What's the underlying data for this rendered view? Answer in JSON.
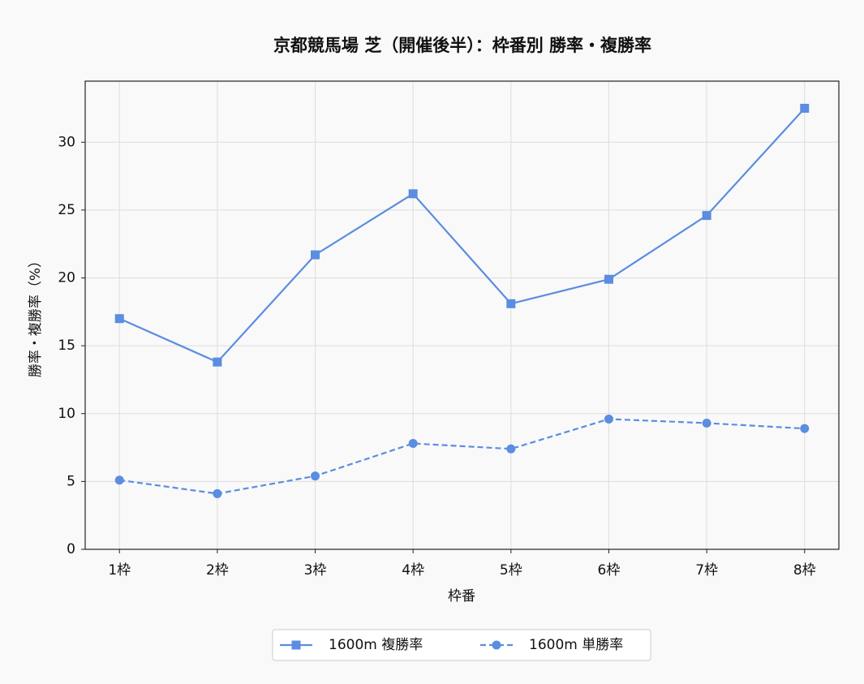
{
  "chart_data": {
    "type": "line",
    "title": "京都競馬場 芝（開催後半）：枠番別 勝率・複勝率",
    "x_label": "枠番",
    "y_label": "勝率・複勝率（%）",
    "categories": [
      "1枠",
      "2枠",
      "3枠",
      "4枠",
      "5枠",
      "6枠",
      "7枠",
      "8枠"
    ],
    "series": [
      {
        "name": "1600m 複勝率",
        "color": "#5b8de0",
        "marker": "square",
        "linestyle": "solid",
        "values": [
          17.0,
          13.8,
          21.7,
          26.2,
          18.1,
          19.9,
          24.6,
          32.5
        ]
      },
      {
        "name": "1600m 単勝率",
        "color": "#5b8de0",
        "marker": "circle",
        "linestyle": "dashed",
        "values": [
          5.1,
          4.1,
          5.4,
          7.8,
          7.4,
          9.6,
          9.3,
          8.9
        ]
      }
    ],
    "ylim": [
      0,
      34.5
    ],
    "yticks": [
      0,
      5,
      10,
      15,
      20,
      25,
      30
    ],
    "grid": true,
    "legend": "bottom"
  }
}
